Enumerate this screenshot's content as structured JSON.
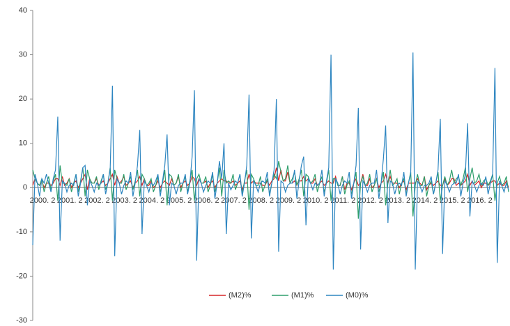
{
  "chart_data": {
    "type": "line",
    "categories": [
      "2000. 2",
      null,
      null,
      null,
      null,
      null,
      null,
      null,
      null,
      null,
      null,
      null,
      "2001. 2",
      null,
      null,
      null,
      null,
      null,
      null,
      null,
      null,
      null,
      null,
      null,
      "2002. 2",
      null,
      null,
      null,
      null,
      null,
      null,
      null,
      null,
      null,
      null,
      null,
      "2003. 2",
      null,
      null,
      null,
      null,
      null,
      null,
      null,
      null,
      null,
      null,
      null,
      "2004. 2",
      null,
      null,
      null,
      null,
      null,
      null,
      null,
      null,
      null,
      null,
      null,
      "2005. 2",
      null,
      null,
      null,
      null,
      null,
      null,
      null,
      null,
      null,
      null,
      null,
      "2006. 2",
      null,
      null,
      null,
      null,
      null,
      null,
      null,
      null,
      null,
      null,
      null,
      "2007. 2",
      null,
      null,
      null,
      null,
      null,
      null,
      null,
      null,
      null,
      null,
      null,
      "2008. 2",
      null,
      null,
      null,
      null,
      null,
      null,
      null,
      null,
      null,
      null,
      null,
      "2009. 2",
      null,
      null,
      null,
      null,
      null,
      null,
      null,
      null,
      null,
      null,
      null,
      "2010. 2",
      null,
      null,
      null,
      null,
      null,
      null,
      null,
      null,
      null,
      null,
      null,
      "2011. 2",
      null,
      null,
      null,
      null,
      null,
      null,
      null,
      null,
      null,
      null,
      null,
      "2012. 2",
      null,
      null,
      null,
      null,
      null,
      null,
      null,
      null,
      null,
      null,
      null,
      "2013. 2",
      null,
      null,
      null,
      null,
      null,
      null,
      null,
      null,
      null,
      null,
      null,
      "2014. 2",
      null,
      null,
      null,
      null,
      null,
      null,
      null,
      null,
      null,
      null,
      null,
      "2015. 2",
      null,
      null,
      null,
      null,
      null,
      null,
      null,
      null,
      null,
      null,
      null,
      "2016. 2",
      null,
      null,
      null,
      null,
      null,
      null,
      null,
      null,
      null,
      null,
      null,
      null,
      null,
      null,
      null,
      null,
      null
    ],
    "series": [
      {
        "name": "(M2)%",
        "color": "#d62728",
        "values": [
          0.5,
          2,
          1,
          0.5,
          1.5,
          0,
          1,
          1,
          0.5,
          1,
          2,
          2,
          0.5,
          2.5,
          0.5,
          1,
          2,
          0,
          1,
          1.5,
          0,
          1,
          2,
          3,
          -0.5,
          2,
          1,
          1,
          2,
          0.5,
          1,
          1.5,
          0.5,
          1,
          2,
          3,
          0.5,
          2.5,
          1,
          1.5,
          2.5,
          0.5,
          1,
          1.5,
          0,
          1,
          1.5,
          2.5,
          0.5,
          2,
          0.5,
          0.5,
          1.5,
          0,
          0.5,
          1.5,
          0,
          1,
          1.5,
          1,
          0.5,
          2,
          0.5,
          1,
          2.5,
          0,
          1,
          1.5,
          0.5,
          1,
          2.5,
          2,
          0.5,
          2,
          1,
          1,
          1.5,
          0,
          1,
          1.5,
          0,
          1,
          1.5,
          2,
          1.5,
          1.5,
          1,
          1,
          1.5,
          0.5,
          1,
          1.5,
          -0.5,
          1,
          1,
          3,
          1,
          1.5,
          1,
          1,
          1,
          0.5,
          0.5,
          1.5,
          0.5,
          1.5,
          2,
          4.5,
          1.5,
          4,
          1.5,
          1.5,
          3.5,
          1,
          1,
          1.5,
          0.5,
          1.5,
          1.5,
          2.5,
          1.5,
          2,
          1,
          1,
          2,
          0.5,
          1,
          1.5,
          0.5,
          1,
          1.5,
          1,
          1,
          2.5,
          0.5,
          0.5,
          2.5,
          -0.5,
          1,
          1,
          -0.5,
          1,
          2,
          0.5,
          1,
          3,
          0.5,
          0.5,
          2,
          0,
          0.5,
          2,
          0,
          1,
          1.5,
          3,
          1,
          2.5,
          1,
          1,
          1,
          0,
          1,
          1.5,
          -0.5,
          1,
          1,
          1,
          1,
          2,
          1,
          0.5,
          2.5,
          -0.5,
          0.5,
          1,
          0.5,
          1,
          1.5,
          0.5,
          0.5,
          2,
          0.5,
          1,
          2,
          2,
          0.5,
          1,
          0.5,
          1,
          1.5,
          3,
          0.5,
          1.5,
          0.5,
          1,
          1.5,
          0,
          1,
          1,
          0.5,
          1,
          1.5,
          1.5,
          0.5,
          1,
          0.5,
          0.5,
          1.5,
          0
        ]
      },
      {
        "name": "(M1)%",
        "color": "#2e9e6b",
        "values": [
          4,
          2,
          1,
          0.5,
          2,
          -1,
          1,
          2.5,
          -0.5,
          1.5,
          3,
          -3,
          5,
          1,
          1,
          0.5,
          2,
          -1,
          1,
          3,
          -1,
          1.5,
          4.5,
          -2,
          4,
          2,
          1,
          1,
          2.5,
          -0.5,
          1.5,
          3,
          -0.5,
          1,
          4.5,
          -3,
          4,
          2,
          1,
          1,
          3,
          -0.5,
          1,
          2.5,
          -0.5,
          1.5,
          4,
          -2,
          3,
          2,
          0.5,
          1,
          2,
          -1,
          0.5,
          2.5,
          -1,
          1,
          4,
          -4,
          3,
          2.5,
          0.5,
          1,
          3,
          -1,
          1,
          2.5,
          -1,
          1.5,
          4,
          -3,
          2,
          3,
          1,
          1,
          2.5,
          -1,
          0.5,
          3,
          -1,
          1,
          4.5,
          -2,
          4,
          1,
          1.5,
          1,
          3,
          -0.5,
          1,
          3,
          -1.5,
          1.5,
          4,
          -5,
          3,
          2,
          0.5,
          0.5,
          2.5,
          -1,
          0.5,
          2,
          -1.5,
          1,
          3,
          2,
          6,
          3.5,
          1.5,
          2,
          5,
          1,
          2,
          3.5,
          0.5,
          2,
          4,
          -2,
          3,
          2.5,
          1,
          1.5,
          3,
          -1,
          1,
          2.5,
          -1,
          1,
          4,
          -3,
          2,
          2,
          0.5,
          0.5,
          2.5,
          -1.5,
          0.5,
          1.5,
          -1.5,
          1,
          3.5,
          -7,
          1,
          2.5,
          0.5,
          1,
          3,
          -1,
          0.5,
          2,
          -1,
          1,
          3.5,
          -4,
          1,
          4,
          0.5,
          1,
          2,
          -1.5,
          1,
          2,
          -1.5,
          1,
          3.5,
          -6.5,
          0.5,
          3,
          0.5,
          0.5,
          2.5,
          -2,
          0.5,
          1.5,
          -1.5,
          1,
          3.5,
          -3,
          0.5,
          2.5,
          0.5,
          1.5,
          4,
          1,
          2,
          2.5,
          0.5,
          2,
          4.5,
          -1,
          2,
          4.5,
          1,
          1.5,
          3,
          0.5,
          1.5,
          2,
          0.5,
          1.5,
          3,
          -3,
          1,
          2.5,
          0.5,
          1,
          2.5,
          -1
        ]
      },
      {
        "name": "(M0)%",
        "color": "#2e86c1",
        "values": [
          -13,
          3,
          1,
          -2,
          2,
          1,
          3,
          1,
          -1,
          2,
          4,
          16,
          -12,
          1.5,
          1,
          -1,
          0.5,
          1,
          0.5,
          3,
          -2,
          1,
          4.5,
          5,
          -4,
          1.5,
          0.5,
          -1,
          1,
          0.5,
          1,
          3,
          -1.5,
          1,
          4,
          23,
          -15.5,
          2,
          1,
          -1.5,
          0.5,
          1.5,
          1,
          3.5,
          -2,
          1,
          5,
          13,
          -10.5,
          1.5,
          0.5,
          -1,
          1,
          0.5,
          1.5,
          3,
          -2,
          1.5,
          5,
          12,
          -4,
          1,
          0.5,
          -1.5,
          0.5,
          1,
          1,
          3,
          -1.5,
          1,
          7,
          22,
          -16.5,
          2,
          1,
          -1,
          0.5,
          1.5,
          1,
          3.5,
          -2.5,
          1,
          6,
          2,
          10,
          -10.5,
          1,
          -0.5,
          0.5,
          1.5,
          1,
          3,
          -2,
          1,
          5,
          21,
          -11.5,
          1.5,
          0.5,
          -1,
          1,
          1.5,
          1,
          3.5,
          -2,
          1,
          4,
          20,
          -14.5,
          1.5,
          1,
          -1,
          0.5,
          1,
          1,
          4,
          -2.5,
          1.5,
          5,
          7,
          -8.5,
          2,
          1,
          -0.5,
          1,
          0.5,
          1,
          4,
          -2,
          1.5,
          4.5,
          30,
          -18.5,
          2,
          1,
          -1.5,
          0.5,
          1.5,
          1,
          3.5,
          -2.5,
          1,
          5,
          18,
          -14,
          1.5,
          0.5,
          -1,
          0.5,
          1,
          1,
          4,
          -2.5,
          1,
          6.5,
          14,
          -8,
          1.5,
          1,
          -1.5,
          0.5,
          1,
          0.5,
          3.5,
          -2,
          1,
          3,
          30.5,
          -18.5,
          1.5,
          0.5,
          -1,
          0.5,
          0.5,
          1,
          2.5,
          -1.5,
          1,
          4,
          15.5,
          -15,
          1.5,
          0.5,
          -1,
          0.5,
          1,
          1,
          3,
          -2,
          1,
          3,
          14.5,
          -6.5,
          1.5,
          0.5,
          -1,
          0.5,
          1,
          0.5,
          2.5,
          -1.5,
          1,
          3,
          27,
          -17,
          1.5,
          0.5,
          -1,
          1,
          -0.5
        ]
      }
    ],
    "ylim": [
      -30,
      40
    ],
    "yticks": [
      -30,
      -20,
      -10,
      0,
      10,
      20,
      30,
      40
    ],
    "grid": false,
    "legend": "bottom"
  }
}
